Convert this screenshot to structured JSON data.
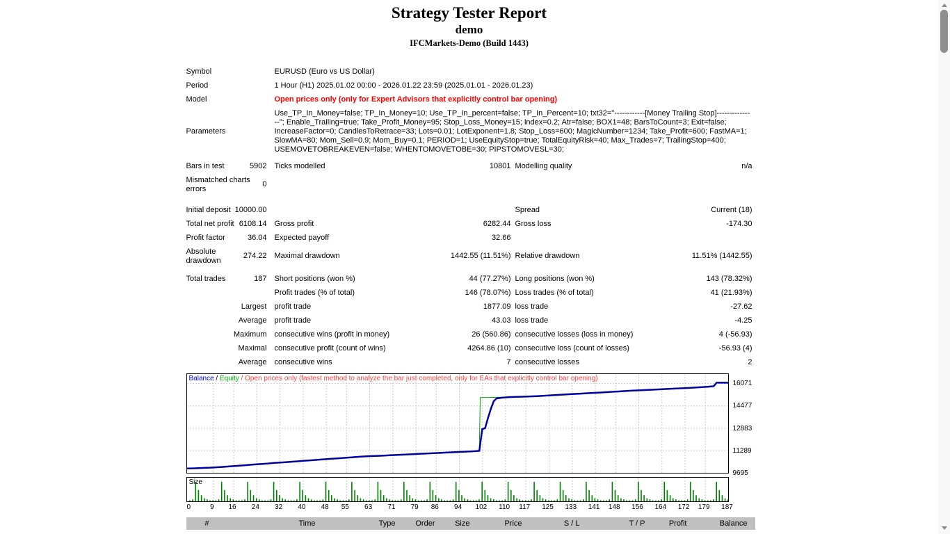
{
  "header": {
    "title": "Strategy Tester Report",
    "subtitle": "demo",
    "server": "IFCMarkets-Demo (Build 1443)"
  },
  "info": [
    {
      "label": "Symbol",
      "value": "EURUSD (Euro vs US Dollar)",
      "red": false
    },
    {
      "label": "Period",
      "value": "1 Hour (H1) 2025.01.02 00:00 - 2026.01.22 23:59 (2025.01.01 - 2026.01.23)",
      "red": false
    },
    {
      "label": "Model",
      "value": "Open prices only (only for Expert Advisors that explicitly control bar opening)",
      "red": true
    },
    {
      "label": "Parameters",
      "value": "Use_TP_In_Money=false; TP_In_Money=10; Use_TP_In_percent=false; TP_In_Percent=10; txt32=\"------------[Money Trailing Stop]---------------\"; Enable_Trailing=true; Take_Profit_Money=95; Stop_Loss_Money=15; index=0.2; Atr=false; BOX1=48; BarsToCount=3; Exit=false; IncreaseFactor=0; CandlesToRetrace=33; Lots=0.01; LotExponent=1.8; Stop_Loss=600; MagicNumber=1234; Take_Profit=600; FastMA=1; SlowMA=80; Mom_Sell=0.9; Mom_Buy=0.1; PERIOD=1; UseEquityStop=true; TotalEquityRisk=40; Max_Trades=7; TrailingStop=400; USEMOVETOBREAKEVEN=false; WHENTOMOVETOBE=30; PIPSTOMOVESL=30;",
      "red": false
    }
  ],
  "stats": {
    "rows": [
      {
        "c1l": "Bars in test",
        "c1v": "5902",
        "c2l": "Ticks modelled",
        "c2v": "10801",
        "c3l": "Modelling quality",
        "c3v": "n/a",
        "gap": 0
      },
      {
        "c1l": "Mismatched charts errors",
        "c1v": "0",
        "c2l": "",
        "c2v": "",
        "c3l": "",
        "c3v": "",
        "gap": 10
      },
      {
        "c1l": "Initial deposit",
        "c1v": "10000.00",
        "c2l": "",
        "c2v": "",
        "c3l": "Spread",
        "c3v": "Current (18)",
        "gap": 0
      },
      {
        "c1l": "Total net profit",
        "c1v": "6108.14",
        "c2l": "Gross profit",
        "c2v": "6282.44",
        "c3l": "Gross loss",
        "c3v": "-174.30",
        "gap": 0
      },
      {
        "c1l": "Profit factor",
        "c1v": "36.04",
        "c2l": "Expected payoff",
        "c2v": "32.66",
        "c3l": "",
        "c3v": "",
        "gap": 0
      },
      {
        "c1l": "Absolute drawdown",
        "c1v": "274.22",
        "c2l": "Maximal drawdown",
        "c2v": "1442.55 (11.51%)",
        "c3l": "Relative drawdown",
        "c3v": "11.51% (1442.55)",
        "gap": 6
      },
      {
        "c1l": "Total trades",
        "c1v": "187",
        "c2l": "Short positions (won %)",
        "c2v": "44 (77.27%)",
        "c3l": "Long positions (won %)",
        "c3v": "143 (78.32%)",
        "gap": 0
      },
      {
        "c1l": "",
        "c1v": "",
        "c2l": "Profit trades (% of total)",
        "c2v": "146 (78.07%)",
        "c3l": "Loss trades (% of total)",
        "c3v": "41 (21.93%)",
        "gap": 0
      },
      {
        "c1l": "",
        "c1v": "Largest",
        "c2l": "profit trade",
        "c2v": "1877.09",
        "c3l": "loss trade",
        "c3v": "-27.62",
        "gap": 0
      },
      {
        "c1l": "",
        "c1v": "Average",
        "c2l": "profit trade",
        "c2v": "43.03",
        "c3l": "loss trade",
        "c3v": "-4.25",
        "gap": 0
      },
      {
        "c1l": "",
        "c1v": "Maximum",
        "c2l": "consecutive wins (profit in money)",
        "c2v": "26 (560.86)",
        "c3l": "consecutive losses (loss in money)",
        "c3v": "4 (-56.93)",
        "gap": 0
      },
      {
        "c1l": "",
        "c1v": "Maximal",
        "c2l": "consecutive profit (count of wins)",
        "c2v": "4264.86 (10)",
        "c3l": "consecutive loss (count of losses)",
        "c3v": "-56.93 (4)",
        "gap": 0
      },
      {
        "c1l": "",
        "c1v": "Average",
        "c2l": "consecutive wins",
        "c2v": "7",
        "c3l": "consecutive losses",
        "c3v": "2",
        "gap": 0
      }
    ]
  },
  "legend": {
    "balance": "Balance",
    "sep1": " / ",
    "equity": "Equity",
    "sep2": " / ",
    "note": "Open prices only (fastest method to analyze the bar just completed, only for EAs that explicitly control bar opening)"
  },
  "chart_data": [
    {
      "type": "line",
      "title": "Balance / Equity",
      "x_range": [
        0,
        187
      ],
      "y_range": [
        9695,
        16719
      ],
      "y_ticks": [
        16071,
        14477,
        12883,
        11289,
        9695
      ],
      "x_ticks": [
        0,
        9,
        16,
        24,
        32,
        40,
        48,
        55,
        63,
        71,
        79,
        86,
        94,
        102,
        110,
        117,
        125,
        133,
        141,
        148,
        156,
        164,
        172,
        179,
        187
      ],
      "grid_color": "#c9c9c9",
      "series": [
        {
          "name": "Equity",
          "color": "#00a800",
          "width": 1,
          "points": [
            [
              0,
              10000
            ],
            [
              20,
              10235
            ],
            [
              40,
              10545
            ],
            [
              60,
              10845
            ],
            [
              80,
              11040
            ],
            [
              100,
              11245
            ],
            [
              101,
              11260
            ],
            [
              101.3,
              15050
            ],
            [
              106,
              15060
            ],
            [
              110,
              15080
            ],
            [
              115,
              15105
            ],
            [
              121,
              15150
            ],
            [
              130,
              15260
            ],
            [
              142,
              15400
            ],
            [
              154,
              15540
            ],
            [
              166,
              15660
            ],
            [
              178,
              15790
            ],
            [
              182,
              15860
            ],
            [
              183,
              16108
            ],
            [
              187,
              16108
            ]
          ]
        },
        {
          "name": "Balance",
          "color": "#0000a0",
          "width": 2.5,
          "points": [
            [
              0,
              10000
            ],
            [
              2,
              10010
            ],
            [
              4,
              10025
            ],
            [
              6,
              10045
            ],
            [
              8,
              10060
            ],
            [
              10,
              10085
            ],
            [
              12,
              10110
            ],
            [
              14,
              10140
            ],
            [
              16,
              10170
            ],
            [
              18,
              10200
            ],
            [
              20,
              10235
            ],
            [
              22,
              10270
            ],
            [
              24,
              10300
            ],
            [
              26,
              10330
            ],
            [
              28,
              10360
            ],
            [
              30,
              10395
            ],
            [
              32,
              10425
            ],
            [
              34,
              10450
            ],
            [
              36,
              10480
            ],
            [
              38,
              10510
            ],
            [
              40,
              10545
            ],
            [
              42,
              10575
            ],
            [
              44,
              10605
            ],
            [
              46,
              10635
            ],
            [
              48,
              10665
            ],
            [
              50,
              10695
            ],
            [
              52,
              10725
            ],
            [
              54,
              10755
            ],
            [
              56,
              10785
            ],
            [
              58,
              10815
            ],
            [
              60,
              10845
            ],
            [
              62,
              10870
            ],
            [
              64,
              10885
            ],
            [
              66,
              10900
            ],
            [
              68,
              10920
            ],
            [
              70,
              10940
            ],
            [
              72,
              10960
            ],
            [
              74,
              10980
            ],
            [
              76,
              11000
            ],
            [
              78,
              11020
            ],
            [
              80,
              11040
            ],
            [
              82,
              11060
            ],
            [
              84,
              11080
            ],
            [
              86,
              11100
            ],
            [
              88,
              11120
            ],
            [
              90,
              11140
            ],
            [
              92,
              11160
            ],
            [
              94,
              11180
            ],
            [
              96,
              11200
            ],
            [
              98,
              11220
            ],
            [
              100,
              11245
            ],
            [
              101,
              11260
            ],
            [
              102,
              12800
            ],
            [
              103,
              12870
            ],
            [
              104,
              13600
            ],
            [
              105,
              14250
            ],
            [
              106,
              14800
            ],
            [
              107,
              14990
            ],
            [
              109,
              15040
            ],
            [
              111,
              15070
            ],
            [
              113,
              15090
            ],
            [
              115,
              15105
            ],
            [
              118,
              15125
            ],
            [
              121,
              15150
            ],
            [
              124,
              15185
            ],
            [
              127,
              15220
            ],
            [
              130,
              15260
            ],
            [
              133,
              15295
            ],
            [
              136,
              15330
            ],
            [
              139,
              15365
            ],
            [
              142,
              15400
            ],
            [
              145,
              15435
            ],
            [
              148,
              15470
            ],
            [
              151,
              15505
            ],
            [
              154,
              15540
            ],
            [
              157,
              15570
            ],
            [
              160,
              15600
            ],
            [
              163,
              15630
            ],
            [
              166,
              15660
            ],
            [
              169,
              15690
            ],
            [
              172,
              15720
            ],
            [
              175,
              15755
            ],
            [
              178,
              15790
            ],
            [
              180,
              15820
            ],
            [
              182,
              15860
            ],
            [
              183,
              16108
            ],
            [
              187,
              16108
            ]
          ]
        }
      ]
    },
    {
      "type": "bar",
      "title": "Size",
      "name": "Size",
      "color": "#008000",
      "max_value": 0.19,
      "x_range": [
        0,
        187
      ],
      "values": [
        0.01,
        0.02,
        0.19,
        0.11,
        0.06,
        0.03,
        0.02,
        0.01,
        0.01,
        0.01,
        0.02,
        0.19,
        0.11,
        0.06,
        0.03,
        0.02,
        0.01,
        0.01,
        0.01,
        0.02,
        0.19,
        0.11,
        0.06,
        0.03,
        0.02,
        0.01,
        0.01,
        0.01,
        0.02,
        0.19,
        0.11,
        0.06,
        0.03,
        0.02,
        0.01,
        0.01,
        0.01,
        0.02,
        0.19,
        0.11,
        0.06,
        0.03,
        0.02,
        0.01,
        0.01,
        0.01,
        0.02,
        0.19,
        0.11,
        0.06,
        0.03,
        0.02,
        0.01,
        0.01,
        0.01,
        0.02,
        0.19,
        0.11,
        0.06,
        0.03,
        0.02,
        0.01,
        0.01,
        0.01,
        0.02,
        0.19,
        0.11,
        0.06,
        0.03,
        0.02,
        0.01,
        0.01,
        0.01,
        0.02,
        0.19,
        0.11,
        0.06,
        0.03,
        0.02,
        0.01,
        0.01,
        0.01,
        0.02,
        0.19,
        0.11,
        0.06,
        0.03,
        0.02,
        0.01,
        0.01,
        0.01,
        0.02,
        0.19,
        0.11,
        0.06,
        0.03,
        0.02,
        0.01,
        0.01,
        0.01,
        0.02,
        0.19,
        0.11,
        0.06,
        0.03,
        0.02,
        0.01,
        0.01,
        0.01,
        0.02,
        0.19,
        0.11,
        0.06,
        0.03,
        0.02,
        0.01,
        0.01,
        0.01,
        0.02,
        0.19,
        0.11,
        0.06,
        0.03,
        0.02,
        0.01,
        0.01,
        0.01,
        0.02,
        0.19,
        0.11,
        0.06,
        0.03,
        0.02,
        0.01,
        0.01,
        0.01,
        0.02,
        0.19,
        0.11,
        0.06,
        0.03,
        0.02,
        0.01,
        0.01,
        0.01,
        0.02,
        0.19,
        0.11,
        0.06,
        0.03,
        0.02,
        0.01,
        0.01,
        0.01,
        0.02,
        0.19,
        0.11,
        0.06,
        0.03,
        0.02,
        0.01,
        0.01,
        0.01,
        0.02,
        0.19,
        0.11,
        0.06,
        0.03,
        0.02,
        0.01,
        0.01,
        0.01,
        0.02,
        0.19,
        0.11,
        0.06,
        0.03,
        0.02,
        0.01,
        0.01,
        0.01,
        0.02,
        0.19,
        0.11,
        0.06,
        0.03,
        0.02
      ]
    }
  ],
  "table": {
    "columns": [
      "#",
      "Time",
      "Type",
      "Order",
      "Size",
      "Price",
      "S / L",
      "T / P",
      "Profit",
      "Balance"
    ]
  }
}
